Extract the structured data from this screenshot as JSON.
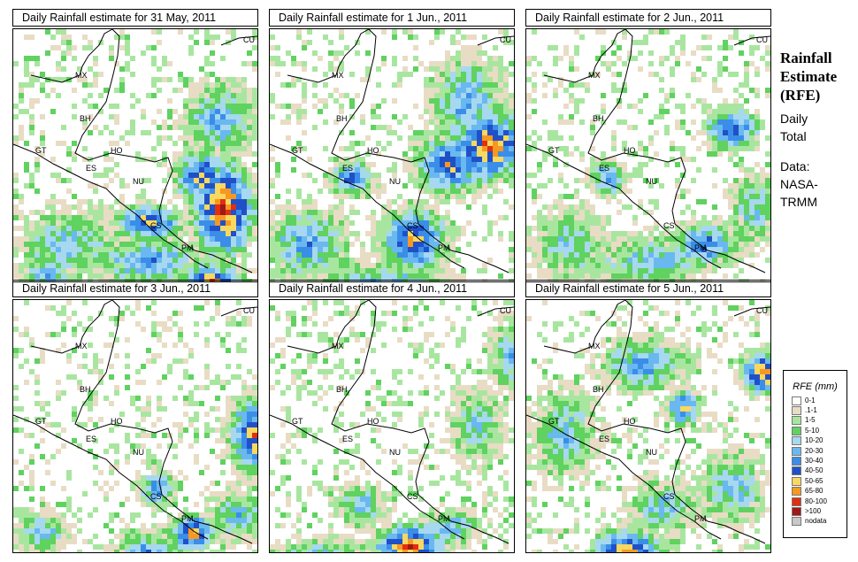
{
  "panels": [
    {
      "title": "Daily Rainfall estimate for  31 May, 2011"
    },
    {
      "title": "Daily Rainfall estimate for  1 Jun., 2011"
    },
    {
      "title": "Daily Rainfall estimate for  2 Jun., 2011"
    },
    {
      "title": "Daily Rainfall estimate for  3 Jun., 2011"
    },
    {
      "title": "Daily Rainfall estimate for  4 Jun., 2011"
    },
    {
      "title": "Daily Rainfall estimate for  5 Jun., 2011"
    }
  ],
  "map_labels": [
    "MX",
    "BH",
    "GT",
    "HO",
    "ES",
    "NU",
    "CS",
    "PM",
    "CU"
  ],
  "side_panel": {
    "title_line1": "Rainfall",
    "title_line2": "Estimate",
    "title_line3": "(RFE)",
    "subtitle_line1": "Daily",
    "subtitle_line2": "Total",
    "source_line1": "Data:",
    "source_line2": "NASA-",
    "source_line3": "TRMM"
  },
  "legend": {
    "title": "RFE (mm)",
    "items": [
      {
        "label": "0-1",
        "color": "#ffffff"
      },
      {
        "label": ".1-1",
        "color": "#e8dcc4"
      },
      {
        "label": "1-5",
        "color": "#a8e6a0"
      },
      {
        "label": "5-10",
        "color": "#5fd25f"
      },
      {
        "label": "10-20",
        "color": "#a6d8f0"
      },
      {
        "label": "20-30",
        "color": "#6ab8f0"
      },
      {
        "label": "30-40",
        "color": "#3a8ee8"
      },
      {
        "label": "40-50",
        "color": "#2050c8"
      },
      {
        "label": "50-65",
        "color": "#f8d860"
      },
      {
        "label": "65-80",
        "color": "#f89820"
      },
      {
        "label": "80-100",
        "color": "#e03010"
      },
      {
        "label": ">100",
        "color": "#a01818"
      },
      {
        "label": "nodata",
        "color": "#c8c8c8"
      }
    ]
  }
}
